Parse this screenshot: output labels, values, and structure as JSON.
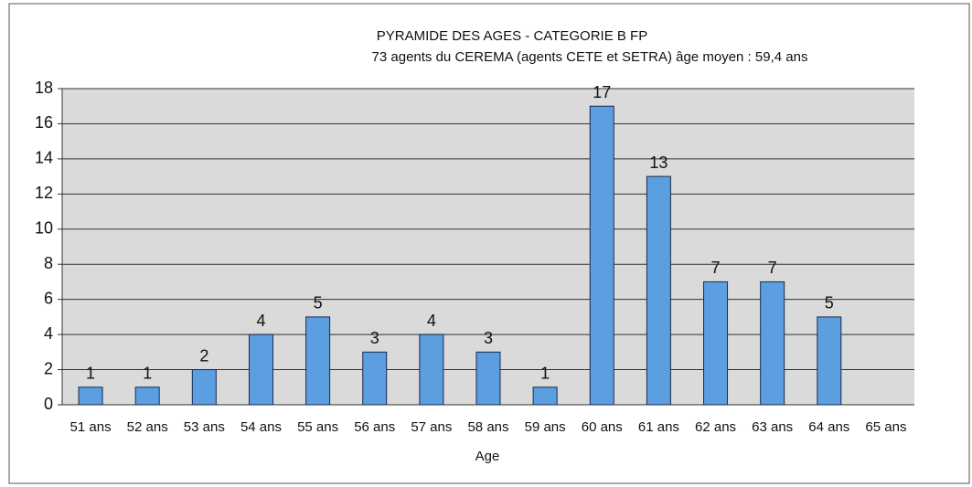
{
  "chart_data": {
    "type": "bar",
    "title": "PYRAMIDE DES AGES - CATEGORIE B FP",
    "subtitle": "73 agents du CEREMA (agents CETE et SETRA)  âge moyen : 59,4 ans",
    "x_label": "Age",
    "categories": [
      "51 ans",
      "52 ans",
      "53 ans",
      "54 ans",
      "55 ans",
      "56 ans",
      "57 ans",
      "58 ans",
      "59 ans",
      "60 ans",
      "61 ans",
      "62 ans",
      "63 ans",
      "64 ans",
      "65 ans"
    ],
    "values": [
      1,
      1,
      2,
      4,
      5,
      3,
      4,
      3,
      1,
      17,
      13,
      7,
      7,
      5,
      null
    ],
    "color": "#5b9fe0",
    "ylim": [
      0,
      18
    ],
    "yticks": [
      0,
      2,
      4,
      6,
      8,
      10,
      12,
      14,
      16,
      18
    ],
    "grid": true
  }
}
